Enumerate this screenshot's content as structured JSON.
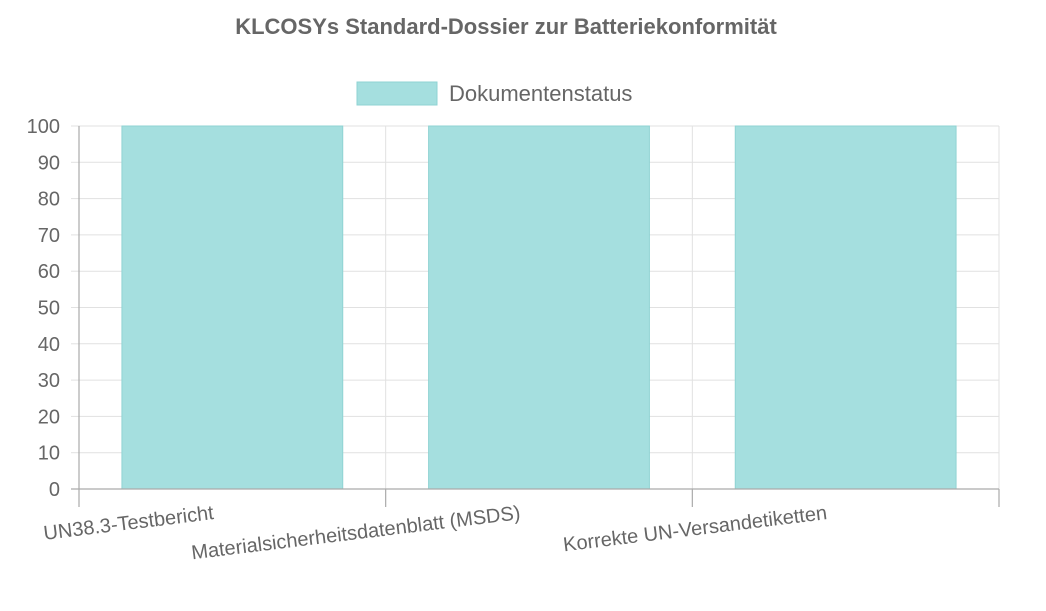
{
  "chart_data": {
    "type": "bar",
    "title": "KLCOSYs Standard-Dossier zur Batteriekonformität",
    "categories": [
      "UN38.3-Testbericht",
      "Materialsicherheitsdatenblatt (MSDS)",
      "Korrekte UN-Versandetiketten"
    ],
    "series": [
      {
        "name": "Dokumentenstatus",
        "values": [
          100,
          100,
          100
        ],
        "color": "#a5dfdf",
        "border_color": "#8fd3d3"
      }
    ],
    "ylim": [
      0,
      100
    ],
    "ytick_step": 10,
    "legend_position": "top",
    "grid": true,
    "xlabel": "",
    "ylabel": ""
  }
}
